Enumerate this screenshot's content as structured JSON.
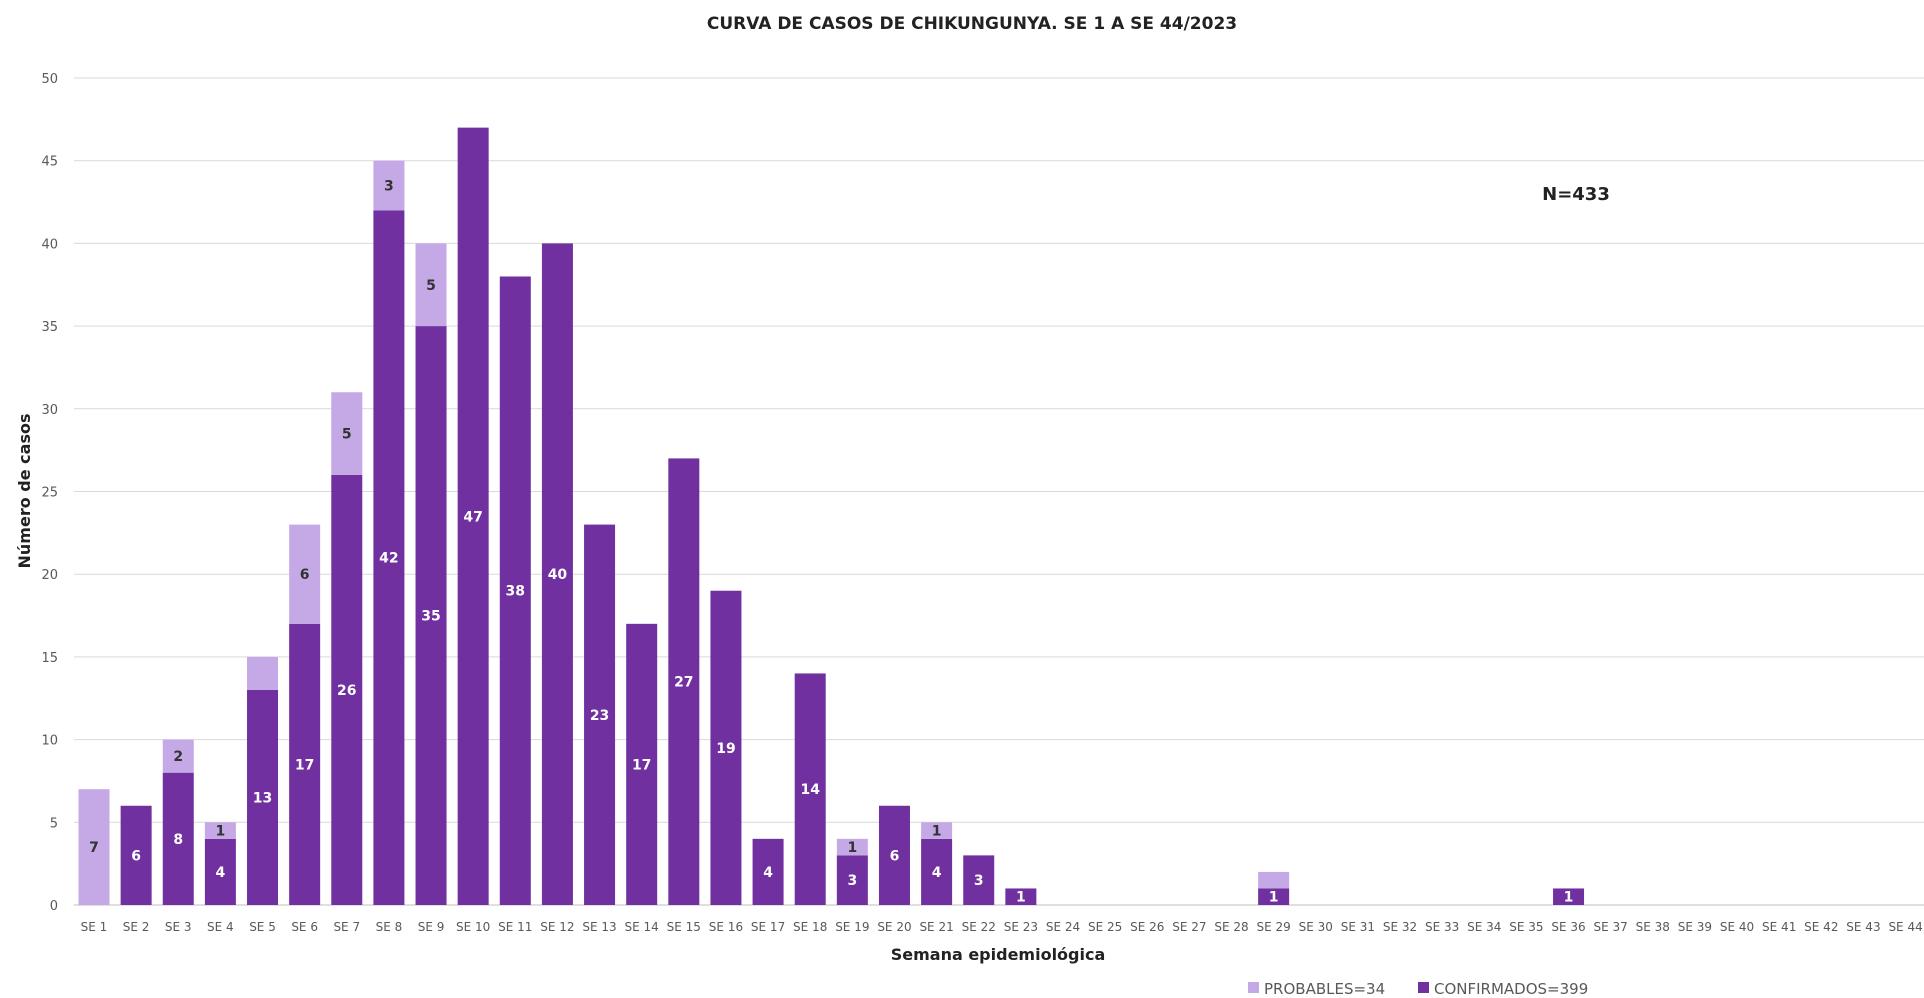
{
  "chart_data": {
    "type": "bar",
    "stacked": true,
    "title": "CURVA DE CASOS DE CHIKUNGUNYA. SE 1 A SE 44/2023",
    "xlabel": "Semana epidemiológica",
    "ylabel": "Número de casos",
    "ylim": [
      0,
      50
    ],
    "yticks": [
      0,
      5,
      10,
      15,
      20,
      25,
      30,
      35,
      40,
      45,
      50
    ],
    "grid": true,
    "legend_position": "bottom",
    "annotation": "N=433",
    "categories": [
      "SE 1",
      "SE 2",
      "SE 3",
      "SE 4",
      "SE 5",
      "SE 6",
      "SE 7",
      "SE 8",
      "SE 9",
      "SE 10",
      "SE 11",
      "SE 12",
      "SE 13",
      "SE 14",
      "SE 15",
      "SE 16",
      "SE 17",
      "SE 18",
      "SE 19",
      "SE 20",
      "SE 21",
      "SE 22",
      "SE 23",
      "SE 24",
      "SE 25",
      "SE 26",
      "SE 27",
      "SE 28",
      "SE 29",
      "SE 30",
      "SE 31",
      "SE 32",
      "SE 33",
      "SE 34",
      "SE 35",
      "SE 36",
      "SE 37",
      "SE 38",
      "SE 39",
      "SE 40",
      "SE 41",
      "SE 42",
      "SE 43",
      "SE 44"
    ],
    "series": [
      {
        "name": "CONFIRMADOS=399",
        "color": "#7030a0",
        "values": [
          0,
          6,
          8,
          4,
          13,
          17,
          26,
          42,
          35,
          47,
          38,
          40,
          23,
          17,
          27,
          19,
          4,
          14,
          3,
          6,
          4,
          3,
          1,
          0,
          0,
          0,
          0,
          0,
          1,
          0,
          0,
          0,
          0,
          0,
          0,
          1,
          0,
          0,
          0,
          0,
          0,
          0,
          0,
          0
        ],
        "labels": [
          null,
          "6",
          "8",
          "4",
          "13",
          "17",
          "26",
          "42",
          "35",
          "47",
          "38",
          "40",
          "23",
          "17",
          "27",
          "19",
          "4",
          "14",
          "3",
          "6",
          "4",
          "3",
          "1",
          null,
          null,
          null,
          null,
          null,
          "1",
          null,
          null,
          null,
          null,
          null,
          null,
          "1",
          null,
          null,
          null,
          null,
          null,
          null,
          null,
          null
        ]
      },
      {
        "name": "PROBABLES=34",
        "color": "#c5a8e6",
        "values": [
          7,
          0,
          2,
          1,
          2,
          6,
          5,
          3,
          5,
          0,
          0,
          0,
          0,
          0,
          0,
          0,
          0,
          0,
          1,
          0,
          1,
          0,
          0,
          0,
          0,
          0,
          0,
          0,
          1,
          0,
          0,
          0,
          0,
          0,
          0,
          0,
          0,
          0,
          0,
          0,
          0,
          0,
          0,
          0
        ],
        "labels": [
          "7",
          null,
          "2",
          "1",
          null,
          "6",
          "5",
          "3",
          "5",
          null,
          null,
          null,
          null,
          null,
          null,
          null,
          null,
          null,
          "1",
          null,
          "1",
          null,
          null,
          null,
          null,
          null,
          null,
          null,
          null,
          null,
          null,
          null,
          null,
          null,
          null,
          null,
          null,
          null,
          null,
          null,
          null,
          null,
          null,
          null
        ]
      }
    ],
    "legend_order": [
      "PROBABLES=34",
      "CONFIRMADOS=399"
    ]
  }
}
